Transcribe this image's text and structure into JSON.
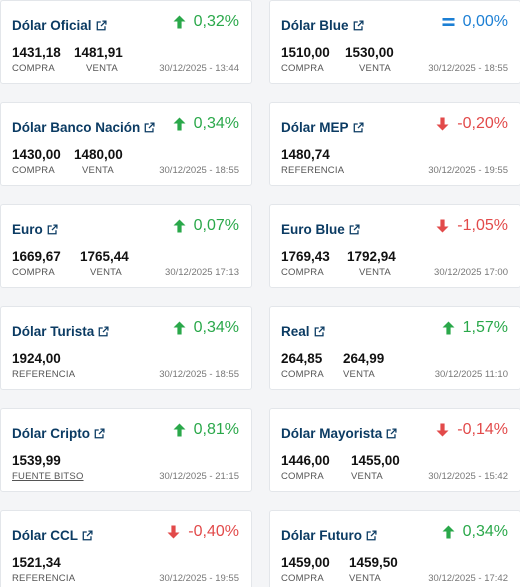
{
  "cards": [
    {
      "title": "Dólar Oficial",
      "change": "0,32%",
      "trend": "up",
      "values": [
        "1431,18",
        "1481,91"
      ],
      "labels": [
        "COMPRA",
        "VENTA"
      ],
      "date": "30/12/2025 - 13:44"
    },
    {
      "title": "Dólar Blue",
      "change": "0,00%",
      "trend": "eq",
      "values": [
        "1510,00",
        "1530,00"
      ],
      "labels": [
        "COMPRA",
        "VENTA"
      ],
      "date": "30/12/2025 - 18:55"
    },
    {
      "title": "Dólar Banco Nación",
      "change": "0,34%",
      "trend": "up",
      "values": [
        "1430,00",
        "1480,00"
      ],
      "labels": [
        "COMPRA",
        "VENTA"
      ],
      "date": "30/12/2025 - 18:55"
    },
    {
      "title": "Dólar MEP",
      "change": "-0,20%",
      "trend": "down",
      "values": [
        "1480,74"
      ],
      "labels": [
        "REFERENCIA"
      ],
      "date": "30/12/2025 - 19:55"
    },
    {
      "title": "Euro",
      "change": "0,07%",
      "trend": "up",
      "values": [
        "1669,67",
        "1765,44"
      ],
      "labels": [
        "COMPRA",
        "VENTA"
      ],
      "date": "30/12/2025 17:13"
    },
    {
      "title": "Euro Blue",
      "change": "-1,05%",
      "trend": "down",
      "values": [
        "1769,43",
        "1792,94"
      ],
      "labels": [
        "COMPRA",
        "VENTA"
      ],
      "date": "30/12/2025 17:00"
    },
    {
      "title": "Dólar Turista",
      "change": "0,34%",
      "trend": "up",
      "values": [
        "1924,00"
      ],
      "labels": [
        "REFERENCIA"
      ],
      "date": "30/12/2025 - 18:55"
    },
    {
      "title": "Real",
      "change": "1,57%",
      "trend": "up",
      "values": [
        "264,85",
        "264,99"
      ],
      "labels": [
        "COMPRA",
        "VENTA"
      ],
      "date": "30/12/2025 11:10"
    },
    {
      "title": "Dólar Cripto",
      "change": "0,81%",
      "trend": "up",
      "values": [
        "1539,99"
      ],
      "labels": [
        "FUENTE BITSO"
      ],
      "label_link": true,
      "date": "30/12/2025 - 21:15"
    },
    {
      "title": "Dólar Mayorista",
      "change": "-0,14%",
      "trend": "down",
      "values": [
        "1446,00",
        "1455,00"
      ],
      "labels": [
        "COMPRA",
        "VENTA"
      ],
      "date": "30/12/2025 - 15:42"
    },
    {
      "title": "Dólar CCL",
      "change": "-0,40%",
      "trend": "down",
      "values": [
        "1521,34"
      ],
      "labels": [
        "REFERENCIA"
      ],
      "date": "30/12/2025 - 19:55"
    },
    {
      "title": "Dólar Futuro",
      "change": "0,34%",
      "trend": "up",
      "values": [
        "1459,00",
        "1459,50"
      ],
      "labels": [
        "COMPRA",
        "VENTA"
      ],
      "date": "30/12/2025 - 17:42"
    }
  ],
  "icons": {
    "title": "external-link-icon",
    "up": "arrow-up-icon",
    "down": "arrow-down-icon",
    "eq": "equals-icon"
  },
  "colors": {
    "title": "#0b3b63",
    "up": "#2aa84a",
    "down": "#e24a4a",
    "eq": "#1c7fd4"
  }
}
